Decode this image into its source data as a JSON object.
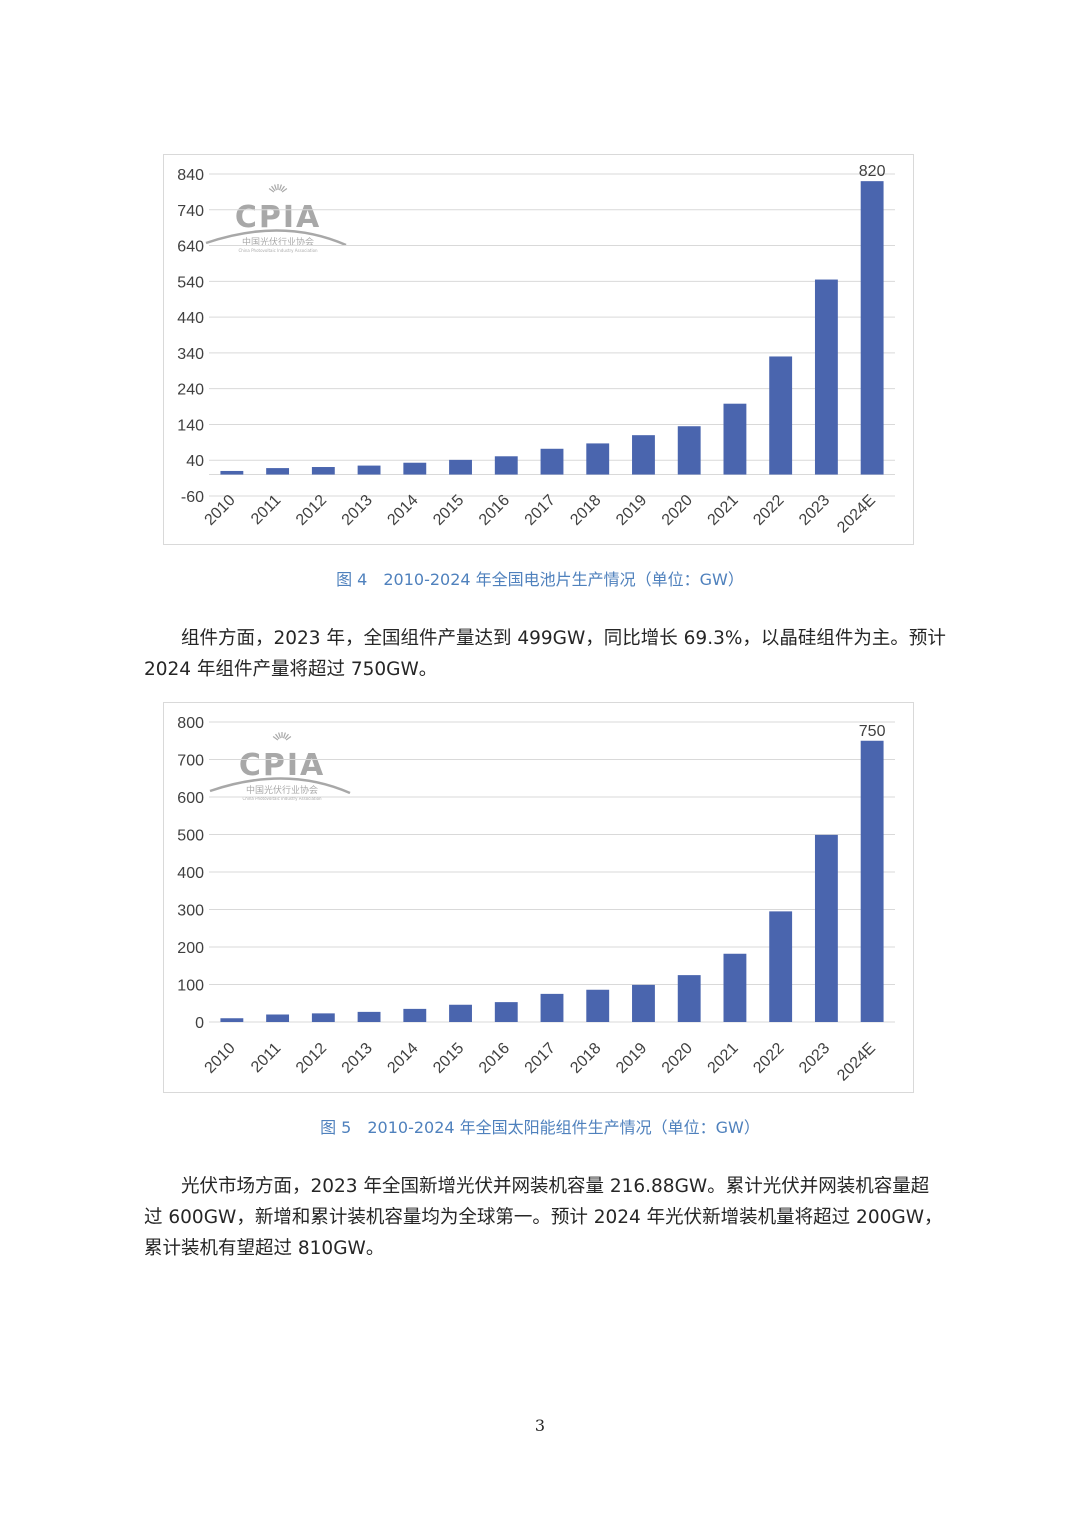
{
  "colors": {
    "bar": "#4a65ae",
    "grid": "#d9d9d9",
    "caption": "#4f81bd",
    "logo": "#9a9a9a"
  },
  "logo": {
    "name": "CPIA",
    "subtitle": "中国光伏行业协会",
    "english": "China Photovoltaic Industry Association"
  },
  "figure1": {
    "caption": "图 4　2010-2024 年全国电池片生产情况（单位：GW）"
  },
  "figure2": {
    "caption": "图 5　2010-2024 年全国太阳能组件生产情况（单位：GW）"
  },
  "paragraph1": {
    "lines": [
      "组件方面，2023 年，全国组件产量达到 499GW，同比增长 69.3%，以晶硅组件为主。预计",
      "2024 年组件产量将超过 750GW。"
    ]
  },
  "paragraph2": {
    "lines": [
      "光伏市场方面，2023 年全国新增光伏并网装机容量 216.88GW。累计光伏并网装机容量超",
      "过 600GW，新增和累计装机容量均为全球第一。预计 2024 年光伏新增装机量将超过 200GW，",
      "累计装机有望超过 810GW。"
    ]
  },
  "page_number": "3",
  "chart_data": [
    {
      "type": "bar",
      "categories": [
        "2010",
        "2011",
        "2012",
        "2013",
        "2014",
        "2015",
        "2016",
        "2017",
        "2018",
        "2019",
        "2020",
        "2021",
        "2022",
        "2023",
        "2024E"
      ],
      "values": [
        10,
        18,
        21,
        25,
        33,
        41,
        51,
        72,
        87,
        110,
        135,
        198,
        330,
        545,
        820
      ],
      "yticks": [
        -60,
        40,
        140,
        240,
        340,
        440,
        540,
        640,
        740,
        840
      ],
      "ylim": [
        -60,
        840
      ],
      "data_labels": {
        "2024E": "820"
      },
      "grid": true,
      "legend": "none"
    },
    {
      "type": "bar",
      "categories": [
        "2010",
        "2011",
        "2012",
        "2013",
        "2014",
        "2015",
        "2016",
        "2017",
        "2018",
        "2019",
        "2020",
        "2021",
        "2022",
        "2023",
        "2024E"
      ],
      "values": [
        10,
        20,
        23,
        27,
        35,
        46,
        53,
        75,
        86,
        99,
        125,
        182,
        295,
        499,
        750
      ],
      "yticks": [
        0,
        100,
        200,
        300,
        400,
        500,
        600,
        700,
        800
      ],
      "ylim": [
        0,
        800
      ],
      "data_labels": {
        "2024E": "750"
      },
      "grid": true,
      "legend": "none"
    }
  ]
}
